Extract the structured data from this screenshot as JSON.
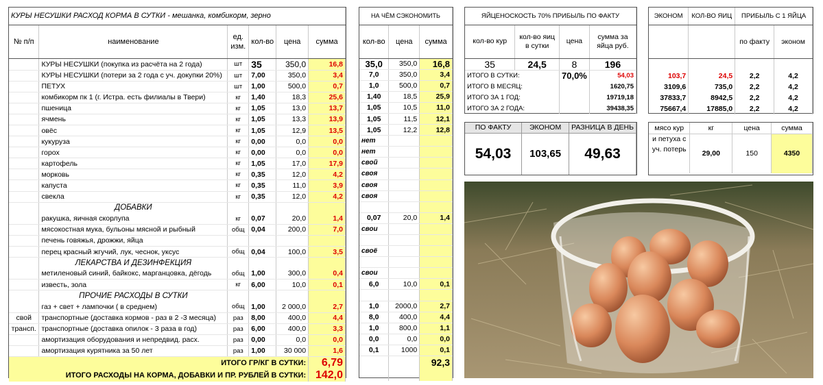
{
  "main": {
    "title": "КУРЫ  НЕСУШКИ         РАСХОД  КОРМА  В  СУТКИ -  мешанка, комбикорм, зерно",
    "headers": {
      "num": "№ п/п",
      "name": "наименование",
      "unit": "ед. изм.",
      "qty": "кол-во",
      "price": "цена",
      "sum": "сумма"
    },
    "rows": [
      {
        "type": "big",
        "n": "",
        "name": "КУРЫ НЕСУШКИ  (покупка из расчёта на 2 года)",
        "unit": "шт",
        "qty": "35",
        "price": "350,0",
        "sum": "16,8"
      },
      {
        "type": "row",
        "n": "",
        "name": "КУРЫ НЕСУШКИ  (потери за 2 года с уч. докупки 20%)",
        "unit": "шт",
        "qty": "7,00",
        "price": "350,0",
        "sum": "3,4"
      },
      {
        "type": "row",
        "n": "",
        "name": "ПЕТУХ",
        "unit": "шт",
        "qty": "1,00",
        "price": "500,0",
        "sum": "0,7"
      },
      {
        "type": "row",
        "n": "",
        "name": "комбикорм пк 1 (г. Истра. есть филиалы в Твери)",
        "unit": "кг",
        "qty": "1,40",
        "price": "18,3",
        "sum": "25,6"
      },
      {
        "type": "row",
        "n": "",
        "name": "пшеница",
        "unit": "кг",
        "qty": "1,05",
        "price": "13,0",
        "sum": "13,7"
      },
      {
        "type": "row",
        "n": "",
        "name": "ячмень",
        "unit": "кг",
        "qty": "1,05",
        "price": "13,3",
        "sum": "13,9"
      },
      {
        "type": "row",
        "n": "",
        "name": "овёс",
        "unit": "кг",
        "qty": "1,05",
        "price": "12,9",
        "sum": "13,5"
      },
      {
        "type": "row",
        "n": "",
        "name": "кукуруза",
        "unit": "кг",
        "qty": "0,00",
        "price": "0,0",
        "sum": "0,0"
      },
      {
        "type": "row",
        "n": "",
        "name": "горох",
        "unit": "кг",
        "qty": "0,00",
        "price": "0,0",
        "sum": "0,0"
      },
      {
        "type": "row",
        "n": "",
        "name": "картофель",
        "unit": "кг",
        "qty": "1,05",
        "price": "17,0",
        "sum": "17,9"
      },
      {
        "type": "row",
        "n": "",
        "name": "морковь",
        "unit": "кг",
        "qty": "0,35",
        "price": "12,0",
        "sum": "4,2"
      },
      {
        "type": "row",
        "n": "",
        "name": "капуста",
        "unit": "кг",
        "qty": "0,35",
        "price": "11,0",
        "sum": "3,9"
      },
      {
        "type": "row",
        "n": "",
        "name": "свекла",
        "unit": "кг",
        "qty": "0,35",
        "price": "12,0",
        "sum": "4,2"
      },
      {
        "type": "sect",
        "n": "",
        "name": "ДОБАВКИ",
        "unit": "",
        "qty": "",
        "price": "",
        "sum": ""
      },
      {
        "type": "row",
        "n": "",
        "name": "ракушка, яичная скорлупа",
        "unit": "кг",
        "qty": "0,07",
        "price": "20,0",
        "sum": "1,4"
      },
      {
        "type": "row",
        "n": "",
        "name": "мясокостная мука, бульоны мясной и рыбный",
        "unit": "общ",
        "qty": "0,04",
        "price": "200,0",
        "sum": "7,0"
      },
      {
        "type": "row",
        "n": "",
        "name": "печень говяжья, дрожжи, яйца",
        "unit": "",
        "qty": "",
        "price": "",
        "sum": ""
      },
      {
        "type": "row",
        "n": "",
        "name": "перец красный жгучий, лук, чеснок, уксус",
        "unit": "общ",
        "qty": "0,04",
        "price": "100,0",
        "sum": "3,5"
      },
      {
        "type": "sect",
        "n": "",
        "name": "ЛЕКАРСТВА И ДЕЗИНФЕКЦИЯ",
        "unit": "",
        "qty": "",
        "price": "",
        "sum": ""
      },
      {
        "type": "row",
        "n": "",
        "name": "метиленовый синий, байкокс, марганцовка, дёгодь",
        "unit": "общ",
        "qty": "1,00",
        "price": "300,0",
        "sum": "0,4"
      },
      {
        "type": "row",
        "n": "",
        "name": "известь, зола",
        "unit": "кг",
        "qty": "6,00",
        "price": "10,0",
        "sum": "0,1"
      },
      {
        "type": "sect",
        "n": "",
        "name": "ПРОЧИЕ РАСХОДЫ В СУТКИ",
        "unit": "",
        "qty": "",
        "price": "",
        "sum": ""
      },
      {
        "type": "row",
        "n": "",
        "name": "газ + свет + лампочки ( в среднем)",
        "unit": "общ",
        "qty": "1,00",
        "price": "2 000,0",
        "sum": "2,7"
      },
      {
        "type": "row",
        "n": "свой",
        "name": "транспортные (доставка кормов - раз в 2 -3 месяца)",
        "unit": "раз",
        "qty": "8,00",
        "price": "400,0",
        "sum": "4,4"
      },
      {
        "type": "row",
        "n": "трансп.",
        "name": "транспортные (доставка опилок - 3 раза в год)",
        "unit": "раз",
        "qty": "6,00",
        "price": "400,0",
        "sum": "3,3"
      },
      {
        "type": "row",
        "n": "",
        "name": "амортизация оборудования и непредвид. расх.",
        "unit": "раз",
        "qty": "0,00",
        "price": "0,0",
        "sum": "0,0"
      },
      {
        "type": "row",
        "n": "",
        "name": "амортизация курятника за 50 лет",
        "unit": "раз",
        "qty": "1,00",
        "price": "30 000",
        "sum": "1,6"
      }
    ],
    "total1_label": "ИТОГО ГР/КГ В СУТКИ:",
    "total1_value": "6,79",
    "total2_label": "ИТОГО РАСХОДЫ НА КОРМА, ДОБАВКИ И ПР. РУБЛЕЙ В СУТКИ:",
    "total2_value": "142,0"
  },
  "savings": {
    "title": "НА ЧЁМ СЭКОНОМИТЬ",
    "headers": {
      "qty": "кол-во",
      "price": "цена",
      "sum": "сумма"
    },
    "rows": [
      {
        "qty": "35,0",
        "price": "350,0",
        "sum": "16,8",
        "txt": false
      },
      {
        "qty": "7,0",
        "price": "350,0",
        "sum": "3,4",
        "txt": false
      },
      {
        "qty": "1,0",
        "price": "500,0",
        "sum": "0,7",
        "txt": false
      },
      {
        "qty": "1,40",
        "price": "18,5",
        "sum": "25,9",
        "txt": false
      },
      {
        "qty": "1,05",
        "price": "10,5",
        "sum": "11,0",
        "txt": false
      },
      {
        "qty": "1,05",
        "price": "11,5",
        "sum": "12,1",
        "txt": false
      },
      {
        "qty": "1,05",
        "price": "12,2",
        "sum": "12,8",
        "txt": false
      },
      {
        "qty": "нет",
        "price": "",
        "sum": "",
        "txt": true
      },
      {
        "qty": "нет",
        "price": "",
        "sum": "",
        "txt": true
      },
      {
        "qty": "свой",
        "price": "",
        "sum": "",
        "txt": true
      },
      {
        "qty": "своя",
        "price": "",
        "sum": "",
        "txt": true
      },
      {
        "qty": "своя",
        "price": "",
        "sum": "",
        "txt": true
      },
      {
        "qty": "своя",
        "price": "",
        "sum": "",
        "txt": true
      },
      {
        "qty": "",
        "price": "",
        "sum": "",
        "txt": false
      },
      {
        "qty": "0,07",
        "price": "20,0",
        "sum": "1,4",
        "txt": false
      },
      {
        "qty": "свои",
        "price": "",
        "sum": "",
        "txt": true
      },
      {
        "qty": "",
        "price": "",
        "sum": "",
        "txt": false
      },
      {
        "qty": "своё",
        "price": "",
        "sum": "",
        "txt": true
      },
      {
        "qty": "",
        "price": "",
        "sum": "",
        "txt": false
      },
      {
        "qty": "свои",
        "price": "",
        "sum": "",
        "txt": true
      },
      {
        "qty": "6,0",
        "price": "10,0",
        "sum": "0,1",
        "txt": false
      },
      {
        "qty": "",
        "price": "",
        "sum": "",
        "txt": false
      },
      {
        "qty": "1,0",
        "price": "2000,0",
        "sum": "2,7",
        "txt": false
      },
      {
        "qty": "8,0",
        "price": "400,0",
        "sum": "4,4",
        "txt": false
      },
      {
        "qty": "1,0",
        "price": "800,0",
        "sum": "1,1",
        "txt": false
      },
      {
        "qty": "0,0",
        "price": "0,0",
        "sum": "0,0",
        "txt": false
      },
      {
        "qty": "0,1",
        "price": "1000",
        "sum": "0,1",
        "txt": false
      }
    ],
    "total": "92,3"
  },
  "prod": {
    "title": "ЯЙЦЕНОСКОСТЬ 70% ПРИБЫЛЬ ПО ФАКТУ",
    "headers": {
      "hens": "кол-во кур",
      "eggs": "кол-во яиц в сутки",
      "price": "цена",
      "sum": "сумма за яйца руб."
    },
    "big": {
      "hens": "35",
      "eggs": "24,5",
      "price": "8",
      "sum": "196"
    },
    "rows": [
      {
        "label": "ИТОГО  В  СУТКИ:",
        "mid": "70,0%",
        "value": "54,03",
        "red": true
      },
      {
        "label": "ИТОГО  В МЕСЯЦ:",
        "mid": "",
        "value": "1620,75",
        "red": false
      },
      {
        "label": "ИТОГО  ЗА 1  ГОД:",
        "mid": "",
        "value": "19719,18",
        "red": false
      },
      {
        "label": "ИТОГО  ЗА 2 ГОДА:",
        "mid": "",
        "value": "39438,35",
        "red": false
      }
    ]
  },
  "econ": {
    "title_econ": "ЭКОНОМ",
    "title_eggs": "КОЛ-ВО ЯИЦ",
    "title_profit": "ПРИБЫЛЬ С 1 ЯЙЦА",
    "h_fact": "по факту",
    "h_econ": "эконом",
    "rows": [
      {
        "econ": "103,7",
        "eggs": "24,5",
        "fact": "2,2",
        "eco": "4,2",
        "red": true
      },
      {
        "econ": "3109,6",
        "eggs": "735,0",
        "fact": "2,2",
        "eco": "4,2",
        "red": false
      },
      {
        "econ": "37833,7",
        "eggs": "8942,5",
        "fact": "2,2",
        "eco": "4,2",
        "red": false
      },
      {
        "econ": "75667,4",
        "eggs": "17885,0",
        "fact": "2,2",
        "eco": "4,2",
        "red": false
      }
    ]
  },
  "compare": {
    "h_fact": "ПО ФАКТУ",
    "h_econ": "ЭКОНОМ",
    "h_diff": "РАЗНИЦА В ДЕНЬ",
    "v_fact": "54,03",
    "v_econ": "103,65",
    "v_diff": "49,63"
  },
  "meat": {
    "h_name": "мясо кур",
    "h_kg": "кг",
    "h_price": "цена",
    "h_sum": "сумма",
    "name_rest": "и петуха с уч. потерь",
    "kg": "29,00",
    "price": "150",
    "sum": "4350"
  },
  "colors": {
    "highlight": "#fdfd9b",
    "red": "#dd0000"
  }
}
